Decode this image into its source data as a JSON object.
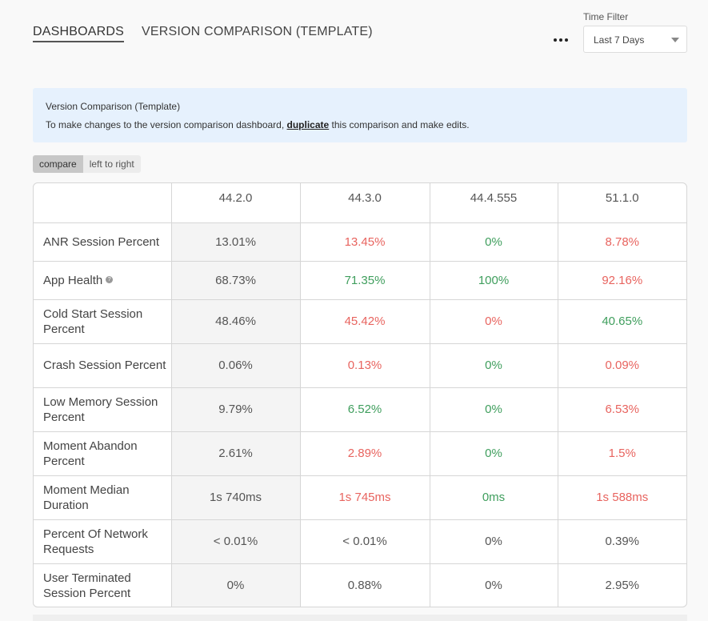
{
  "header": {
    "breadcrumb_root": "DASHBOARDS",
    "page_title": "VERSION COMPARISON (TEMPLATE)",
    "time_filter_label": "Time Filter",
    "time_filter_value": "Last 7 Days"
  },
  "banner": {
    "title": "Version Comparison (Template)",
    "text_before": "To make changes to the version comparison dashboard, ",
    "link": "duplicate",
    "text_after": " this comparison and make edits."
  },
  "toggle": {
    "active": "compare",
    "inactive": "left to right"
  },
  "table": {
    "columns": [
      "44.2.0",
      "44.3.0",
      "44.4.555",
      "51.1.0"
    ],
    "rows": [
      {
        "metric": "ANR Session Percent",
        "info": false,
        "cells": [
          {
            "value": "13.01%",
            "status": "base"
          },
          {
            "value": "13.45%",
            "status": "neg"
          },
          {
            "value": "0%",
            "status": "pos"
          },
          {
            "value": "8.78%",
            "status": "neg"
          }
        ]
      },
      {
        "metric": "App Health",
        "info": true,
        "cells": [
          {
            "value": "68.73%",
            "status": "base"
          },
          {
            "value": "71.35%",
            "status": "pos"
          },
          {
            "value": "100%",
            "status": "pos"
          },
          {
            "value": "92.16%",
            "status": "neg"
          }
        ]
      },
      {
        "metric": "Cold Start Session Percent",
        "info": false,
        "cells": [
          {
            "value": "48.46%",
            "status": "base"
          },
          {
            "value": "45.42%",
            "status": "neg"
          },
          {
            "value": "0%",
            "status": "neg"
          },
          {
            "value": "40.65%",
            "status": "pos"
          }
        ]
      },
      {
        "metric": "Crash Session Percent",
        "info": false,
        "cells": [
          {
            "value": "0.06%",
            "status": "base"
          },
          {
            "value": "0.13%",
            "status": "neg"
          },
          {
            "value": "0%",
            "status": "pos"
          },
          {
            "value": "0.09%",
            "status": "neg"
          }
        ]
      },
      {
        "metric": "Low Memory Session Percent",
        "info": false,
        "cells": [
          {
            "value": "9.79%",
            "status": "base"
          },
          {
            "value": "6.52%",
            "status": "pos"
          },
          {
            "value": "0%",
            "status": "pos"
          },
          {
            "value": "6.53%",
            "status": "neg"
          }
        ]
      },
      {
        "metric": "Moment Abandon Percent",
        "info": false,
        "cells": [
          {
            "value": "2.61%",
            "status": "base"
          },
          {
            "value": "2.89%",
            "status": "neg"
          },
          {
            "value": "0%",
            "status": "pos"
          },
          {
            "value": "1.5%",
            "status": "neg"
          }
        ]
      },
      {
        "metric": "Moment Median Duration",
        "info": false,
        "cells": [
          {
            "value": "1s 740ms",
            "status": "base"
          },
          {
            "value": "1s 745ms",
            "status": "neg"
          },
          {
            "value": "0ms",
            "status": "pos"
          },
          {
            "value": "1s 588ms",
            "status": "neg"
          }
        ]
      },
      {
        "metric": "Percent Of Network Requests",
        "info": false,
        "cells": [
          {
            "value": "< 0.01%",
            "status": "base"
          },
          {
            "value": "< 0.01%",
            "status": "neu"
          },
          {
            "value": "0%",
            "status": "neu"
          },
          {
            "value": "0.39%",
            "status": "neu"
          }
        ]
      },
      {
        "metric": "User Terminated Session Percent",
        "info": false,
        "cells": [
          {
            "value": "0%",
            "status": "base"
          },
          {
            "value": "0.88%",
            "status": "neu"
          },
          {
            "value": "0%",
            "status": "neu"
          },
          {
            "value": "2.95%",
            "status": "neu"
          }
        ]
      }
    ]
  },
  "colors": {
    "positive": "#3f9e5d",
    "negative": "#e8645f",
    "banner_bg": "#e6f1fd"
  }
}
